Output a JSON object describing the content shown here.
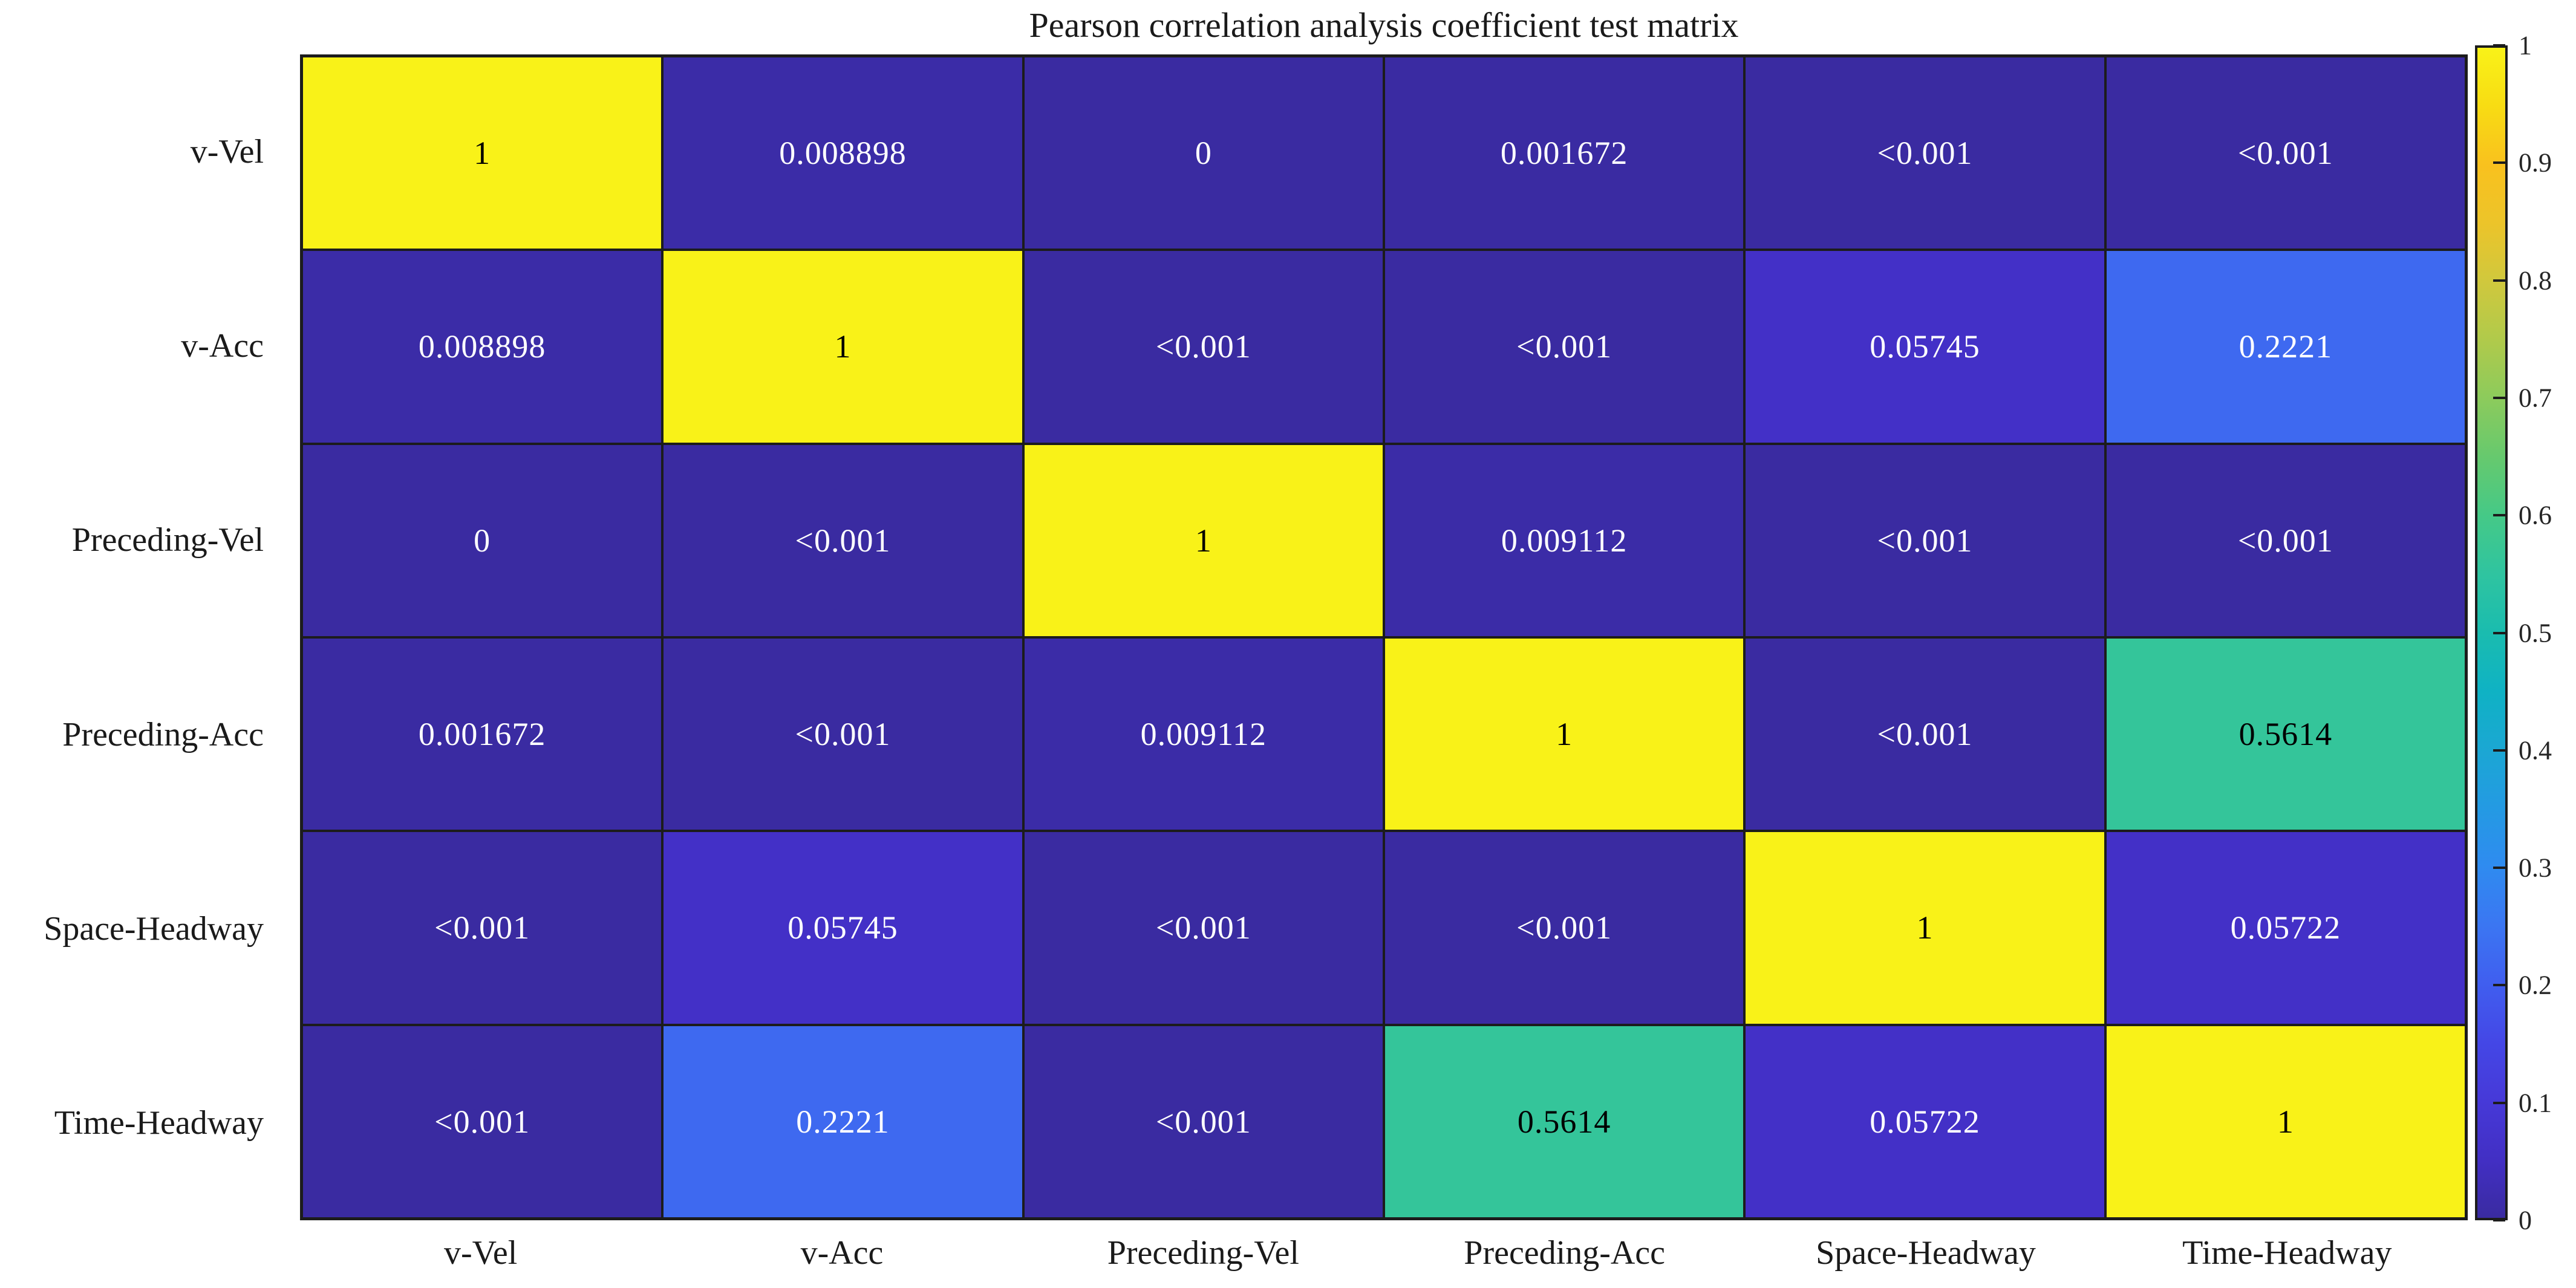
{
  "title": "Pearson correlation analysis coefficient test matrix",
  "colors": {
    "grid_line": "#1c1c1c",
    "cell_text_light": "#ffffff",
    "cell_text_dark": "#000000",
    "label_text": "#1a1a1a"
  },
  "chart_data": {
    "type": "heatmap",
    "title": "Pearson correlation analysis coefficient test matrix",
    "xlabel": "",
    "ylabel": "",
    "categories": [
      "v-Vel",
      "v-Acc",
      "Preceding-Vel",
      "Preceding-Acc",
      "Space-Headway",
      "Time-Headway"
    ],
    "rows": [
      {
        "label": "v-Vel",
        "cells": [
          {
            "text": "1",
            "v": 1
          },
          {
            "text": "0.008898",
            "v": 0.008898
          },
          {
            "text": "0",
            "v": 0
          },
          {
            "text": "0.001672",
            "v": 0.001672
          },
          {
            "text": "<0.001",
            "v": 0.0005
          },
          {
            "text": "<0.001",
            "v": 0.0005
          }
        ]
      },
      {
        "label": "v-Acc",
        "cells": [
          {
            "text": "0.008898",
            "v": 0.008898
          },
          {
            "text": "1",
            "v": 1
          },
          {
            "text": "<0.001",
            "v": 0.0005
          },
          {
            "text": "<0.001",
            "v": 0.0005
          },
          {
            "text": "0.05745",
            "v": 0.05745
          },
          {
            "text": "0.2221",
            "v": 0.2221
          }
        ]
      },
      {
        "label": "Preceding-Vel",
        "cells": [
          {
            "text": "0",
            "v": 0
          },
          {
            "text": "<0.001",
            "v": 0.0005
          },
          {
            "text": "1",
            "v": 1
          },
          {
            "text": "0.009112",
            "v": 0.009112
          },
          {
            "text": "<0.001",
            "v": 0.0005
          },
          {
            "text": "<0.001",
            "v": 0.0005
          }
        ]
      },
      {
        "label": "Preceding-Acc",
        "cells": [
          {
            "text": "0.001672",
            "v": 0.001672
          },
          {
            "text": "<0.001",
            "v": 0.0005
          },
          {
            "text": "0.009112",
            "v": 0.009112
          },
          {
            "text": "1",
            "v": 1
          },
          {
            "text": "<0.001",
            "v": 0.0005
          },
          {
            "text": "0.5614",
            "v": 0.5614
          }
        ]
      },
      {
        "label": "Space-Headway",
        "cells": [
          {
            "text": "<0.001",
            "v": 0.0005
          },
          {
            "text": "0.05745",
            "v": 0.05745
          },
          {
            "text": "<0.001",
            "v": 0.0005
          },
          {
            "text": "<0.001",
            "v": 0.0005
          },
          {
            "text": "1",
            "v": 1
          },
          {
            "text": "0.05722",
            "v": 0.05722
          }
        ]
      },
      {
        "label": "Time-Headway",
        "cells": [
          {
            "text": "<0.001",
            "v": 0.0005
          },
          {
            "text": "0.2221",
            "v": 0.2221
          },
          {
            "text": "<0.001",
            "v": 0.0005
          },
          {
            "text": "0.5614",
            "v": 0.5614
          },
          {
            "text": "0.05722",
            "v": 0.05722
          },
          {
            "text": "1",
            "v": 1
          }
        ]
      }
    ],
    "colorbar": {
      "min": 0,
      "max": 1,
      "ticks": [
        {
          "label": "1",
          "v": 1.0
        },
        {
          "label": "0.9",
          "v": 0.9
        },
        {
          "label": "0.8",
          "v": 0.8
        },
        {
          "label": "0.7",
          "v": 0.7
        },
        {
          "label": "0.6",
          "v": 0.6
        },
        {
          "label": "0.5",
          "v": 0.5
        },
        {
          "label": "0.4",
          "v": 0.4
        },
        {
          "label": "0.3",
          "v": 0.3
        },
        {
          "label": "0.2",
          "v": 0.2
        },
        {
          "label": "0.1",
          "v": 0.1
        },
        {
          "label": "0",
          "v": 0.0
        }
      ]
    },
    "colormap_name": "parula",
    "colormap_stops": [
      [
        0.0,
        "#3A2BA1"
      ],
      [
        0.05,
        "#422FC4"
      ],
      [
        0.1,
        "#4639D8"
      ],
      [
        0.15,
        "#4447E6"
      ],
      [
        0.2,
        "#405EEF"
      ],
      [
        0.25,
        "#3B76F2"
      ],
      [
        0.3,
        "#2F8BF0"
      ],
      [
        0.35,
        "#249AE3"
      ],
      [
        0.4,
        "#1BA7D3"
      ],
      [
        0.45,
        "#0FB2C4"
      ],
      [
        0.5,
        "#1ABCAF"
      ],
      [
        0.55,
        "#2FC4A0"
      ],
      [
        0.6,
        "#45C987"
      ],
      [
        0.65,
        "#66C96E"
      ],
      [
        0.7,
        "#8CCB5C"
      ],
      [
        0.75,
        "#B0CA4B"
      ],
      [
        0.8,
        "#D0C83D"
      ],
      [
        0.85,
        "#ECC42A"
      ],
      [
        0.9,
        "#F9C11E"
      ],
      [
        0.95,
        "#F8DC13"
      ],
      [
        1.0,
        "#F9F218"
      ]
    ],
    "text_dark_threshold": 0.4,
    "legend_position": "right-colorbar",
    "grid": true
  }
}
